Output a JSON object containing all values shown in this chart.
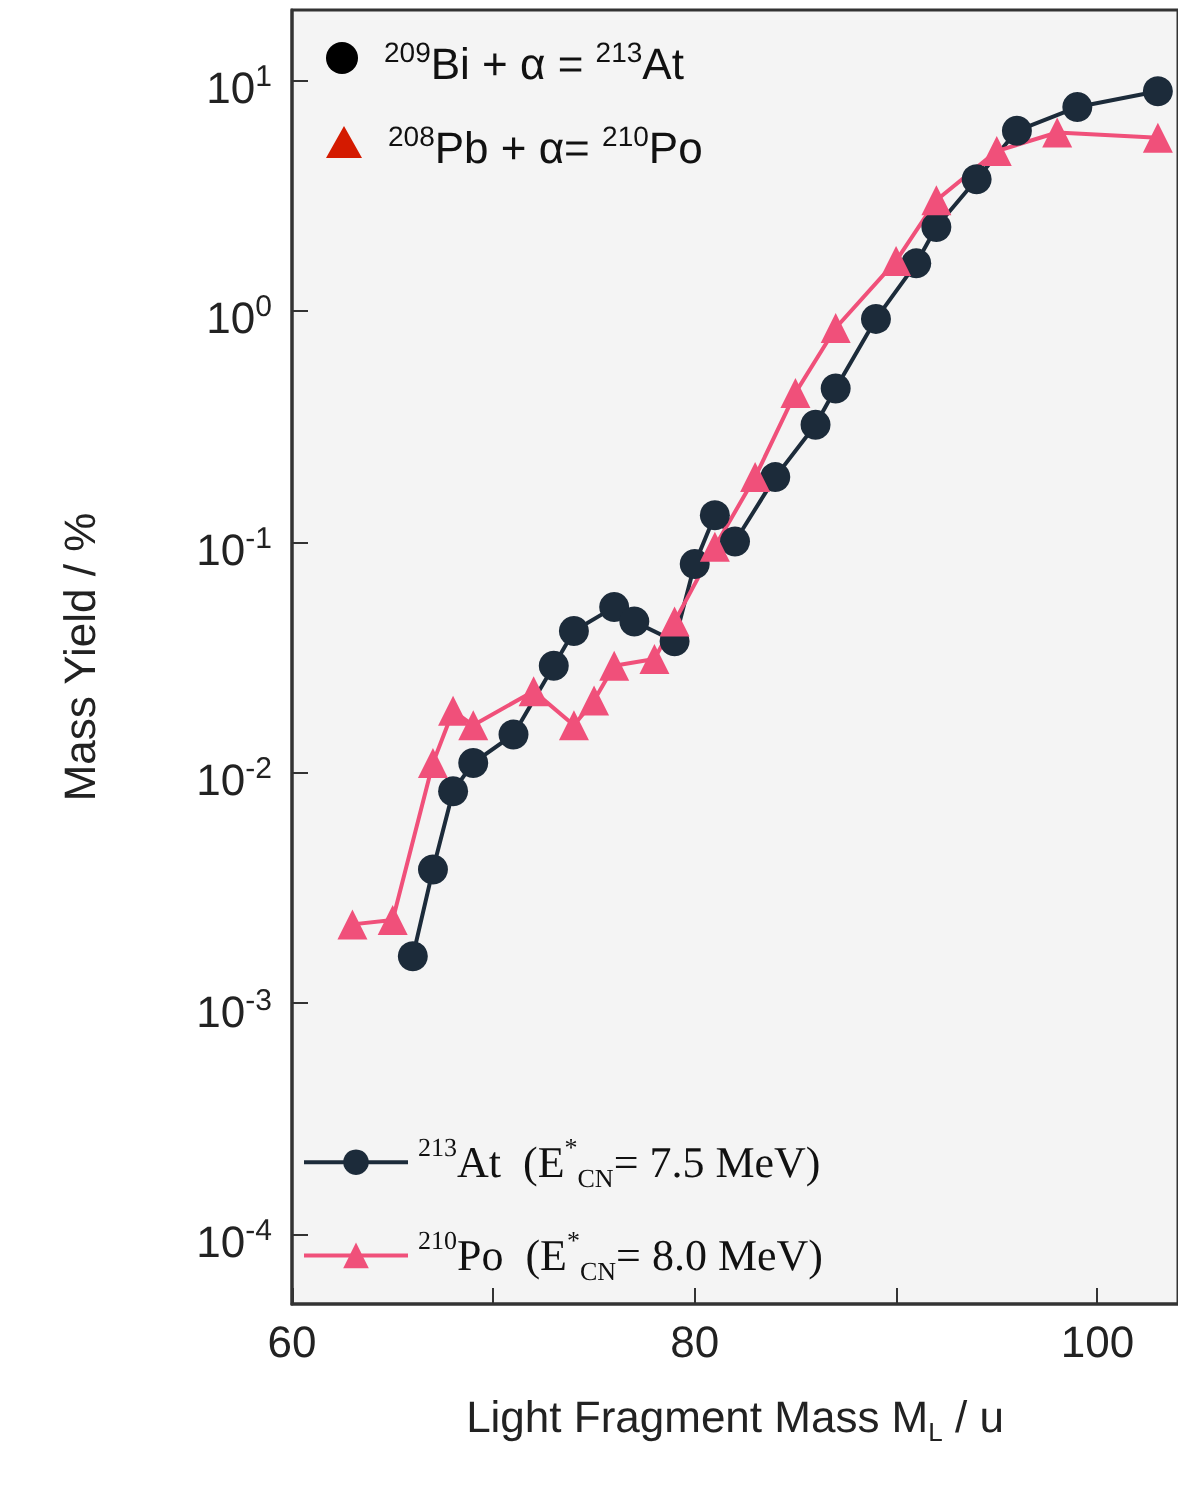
{
  "chart_data": {
    "type": "line",
    "xlabel": "Light Fragment Mass M$_{L}$ / u",
    "ylabel": "Mass Yield / %",
    "log": "y",
    "grid": false,
    "legend": "bottom left",
    "xlim": [
      60,
      104
    ],
    "xticks": [
      60,
      {
        "value": 70,
        "label": null
      },
      80,
      {
        "value": 90,
        "label": null
      },
      100
    ],
    "ylim": [
      5e-05,
      20
    ],
    "yticks": [
      {
        "value": 0.0001,
        "label": "10$^{-4}$"
      },
      {
        "value": 0.001,
        "label": "10$^{-3}$"
      },
      {
        "value": 0.01,
        "label": "10$^{-2}$"
      },
      {
        "value": 0.1,
        "label": "10$^{-1}$"
      },
      {
        "value": 1,
        "label": "10$^{0}$"
      },
      {
        "value": 10,
        "label": "10$^{1}$"
      }
    ],
    "annotations": [
      "$^{209}$Bi + α = $^{213}$At",
      "$^{208}$Pb + α= $^{210}$Po"
    ],
    "series": [
      {
        "name": "$^{213}$At  (E$^{*}$$_{CN}$= 7.5 MeV)",
        "color": "#1c2b3a",
        "marker": "circle",
        "x": [
          66,
          67,
          68,
          69,
          71,
          73,
          74,
          76,
          77,
          79,
          80,
          81,
          82,
          84,
          86,
          87,
          89,
          91,
          92,
          94,
          96,
          99,
          103
        ],
        "values": [
          0.0016,
          0.0038,
          0.0083,
          0.011,
          0.0146,
          0.029,
          0.041,
          0.052,
          0.045,
          0.037,
          0.08,
          0.13,
          0.1,
          0.19,
          0.32,
          0.46,
          0.92,
          1.6,
          2.3,
          3.7,
          6,
          7.6,
          8.9
        ]
      },
      {
        "name": "$^{210}$Po  (E$^{*}$$_{CN}$= 8.0 MeV)",
        "color": "#f0507a",
        "marker": "triangle",
        "x": [
          63,
          65,
          67,
          68,
          69,
          72,
          74,
          75,
          76,
          78,
          79,
          81,
          83,
          85,
          87,
          90,
          92,
          95,
          98,
          103
        ],
        "values": [
          0.0022,
          0.0023,
          0.011,
          0.0185,
          0.016,
          0.0225,
          0.016,
          0.0205,
          0.029,
          0.031,
          0.045,
          0.095,
          0.19,
          0.44,
          0.84,
          1.64,
          3,
          4.9,
          5.9,
          5.6
        ]
      }
    ]
  }
}
